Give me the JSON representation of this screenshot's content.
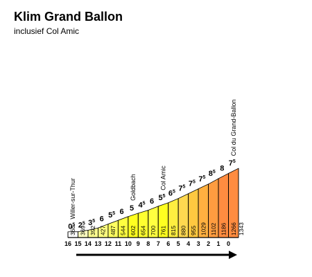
{
  "title": "Klim Grand Ballon",
  "subtitle": "inclusief Col Amic",
  "chart_data": {
    "type": "area",
    "km_markers": [
      "16",
      "15",
      "14",
      "13",
      "12",
      "11",
      "10",
      "9",
      "8",
      "7",
      "6",
      "5",
      "4",
      "3",
      "2",
      "1",
      "0"
    ],
    "altitudes": [
      368,
      369,
      392,
      427,
      487,
      544,
      602,
      654,
      700,
      761,
      815,
      880,
      955,
      1029,
      1102,
      1186,
      1266,
      1343
    ],
    "gradients": [
      {
        "int": "0",
        "frac": "5"
      },
      {
        "int": "2",
        "frac": "5"
      },
      {
        "int": "3",
        "frac": "5"
      },
      {
        "int": "6",
        "frac": ""
      },
      {
        "int": "5",
        "frac": "5"
      },
      {
        "int": "6",
        "frac": ""
      },
      {
        "int": "5",
        "frac": ""
      },
      {
        "int": "4",
        "frac": "5"
      },
      {
        "int": "6",
        "frac": ""
      },
      {
        "int": "5",
        "frac": "5"
      },
      {
        "int": "6",
        "frac": "5"
      },
      {
        "int": "7",
        "frac": "5"
      },
      {
        "int": "7",
        "frac": "5"
      },
      {
        "int": "7",
        "frac": "5"
      },
      {
        "int": "8",
        "frac": "5"
      },
      {
        "int": "8",
        "frac": ""
      },
      {
        "int": "7",
        "frac": "5"
      }
    ],
    "segment_colors": [
      "#ffffff",
      "#ffffc0",
      "#ffff90",
      "#ffff80",
      "#ffff60",
      "#ffff40",
      "#ffff20",
      "#ffff30",
      "#ffff40",
      "#ffff20",
      "#ffee40",
      "#ffd850",
      "#ffc840",
      "#ffb040",
      "#ff9c40",
      "#ff8c40",
      "#ff8c40"
    ],
    "places": [
      {
        "name": "Willer-sur-Thur",
        "at": 0
      },
      {
        "name": "Goldbach",
        "at": 6
      },
      {
        "name": "Col Amic",
        "at": 9
      },
      {
        "name": "Col du Grand-Ballon",
        "at": 16
      }
    ]
  }
}
